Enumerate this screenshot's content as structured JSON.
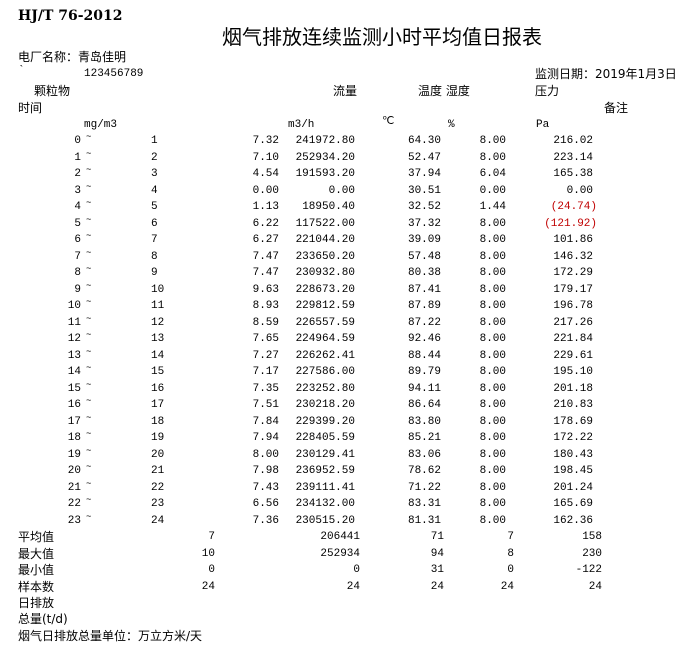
{
  "standard": "HJ/T 76-2012",
  "title": "烟气排放连续监测小时平均值日报表",
  "plant_label": "电厂名称：青岛佳明",
  "tick_mark": "`",
  "code": "123456789",
  "date_label": "监测日期：2019年1月3日",
  "headers": {
    "pm": "颗粒物",
    "flow": "流量",
    "temp_hum": "温度 湿度",
    "pressure": "压力",
    "time": "时间",
    "remark": "备注",
    "pm_unit": "mg/m3",
    "flow_unit": "m3/h",
    "temp_unit": "℃",
    "hum_unit": "%",
    "pressure_unit": "Pa"
  },
  "tilde": "~",
  "accent_negative": "#c00000",
  "rows": [
    {
      "start": "0",
      "end": "1",
      "pm": "7.32",
      "flow": "241972.80",
      "temp": "64.30",
      "hum": "8.00",
      "pressure": "216.02"
    },
    {
      "start": "1",
      "end": "2",
      "pm": "7.10",
      "flow": "252934.20",
      "temp": "52.47",
      "hum": "8.00",
      "pressure": "223.14"
    },
    {
      "start": "2",
      "end": "3",
      "pm": "4.54",
      "flow": "191593.20",
      "temp": "37.94",
      "hum": "6.04",
      "pressure": "165.38"
    },
    {
      "start": "3",
      "end": "4",
      "pm": "0.00",
      "flow": "0.00",
      "temp": "30.51",
      "hum": "0.00",
      "pressure": "0.00"
    },
    {
      "start": "4",
      "end": "5",
      "pm": "1.13",
      "flow": "18950.40",
      "temp": "32.52",
      "hum": "1.44",
      "pressure": "(24.74)",
      "negative": true
    },
    {
      "start": "5",
      "end": "6",
      "pm": "6.22",
      "flow": "117522.00",
      "temp": "37.32",
      "hum": "8.00",
      "pressure": "(121.92)",
      "negative": true
    },
    {
      "start": "6",
      "end": "7",
      "pm": "6.27",
      "flow": "221044.20",
      "temp": "39.09",
      "hum": "8.00",
      "pressure": "101.86"
    },
    {
      "start": "7",
      "end": "8",
      "pm": "7.47",
      "flow": "233650.20",
      "temp": "57.48",
      "hum": "8.00",
      "pressure": "146.32"
    },
    {
      "start": "8",
      "end": "9",
      "pm": "7.47",
      "flow": "230932.80",
      "temp": "80.38",
      "hum": "8.00",
      "pressure": "172.29"
    },
    {
      "start": "9",
      "end": "10",
      "pm": "9.63",
      "flow": "228673.20",
      "temp": "87.41",
      "hum": "8.00",
      "pressure": "179.17"
    },
    {
      "start": "10",
      "end": "11",
      "pm": "8.93",
      "flow": "229812.59",
      "temp": "87.89",
      "hum": "8.00",
      "pressure": "196.78"
    },
    {
      "start": "11",
      "end": "12",
      "pm": "8.59",
      "flow": "226557.59",
      "temp": "87.22",
      "hum": "8.00",
      "pressure": "217.26"
    },
    {
      "start": "12",
      "end": "13",
      "pm": "7.65",
      "flow": "224964.59",
      "temp": "92.46",
      "hum": "8.00",
      "pressure": "221.84"
    },
    {
      "start": "13",
      "end": "14",
      "pm": "7.27",
      "flow": "226262.41",
      "temp": "88.44",
      "hum": "8.00",
      "pressure": "229.61"
    },
    {
      "start": "14",
      "end": "15",
      "pm": "7.17",
      "flow": "227586.00",
      "temp": "89.79",
      "hum": "8.00",
      "pressure": "195.10"
    },
    {
      "start": "15",
      "end": "16",
      "pm": "7.35",
      "flow": "223252.80",
      "temp": "94.11",
      "hum": "8.00",
      "pressure": "201.18"
    },
    {
      "start": "16",
      "end": "17",
      "pm": "7.51",
      "flow": "230218.20",
      "temp": "86.64",
      "hum": "8.00",
      "pressure": "210.83"
    },
    {
      "start": "17",
      "end": "18",
      "pm": "7.84",
      "flow": "229399.20",
      "temp": "83.80",
      "hum": "8.00",
      "pressure": "178.69"
    },
    {
      "start": "18",
      "end": "19",
      "pm": "7.94",
      "flow": "228405.59",
      "temp": "85.21",
      "hum": "8.00",
      "pressure": "172.22"
    },
    {
      "start": "19",
      "end": "20",
      "pm": "8.00",
      "flow": "230129.41",
      "temp": "83.06",
      "hum": "8.00",
      "pressure": "180.43"
    },
    {
      "start": "20",
      "end": "21",
      "pm": "7.98",
      "flow": "236952.59",
      "temp": "78.62",
      "hum": "8.00",
      "pressure": "198.45"
    },
    {
      "start": "21",
      "end": "22",
      "pm": "7.43",
      "flow": "239111.41",
      "temp": "71.22",
      "hum": "8.00",
      "pressure": "201.24"
    },
    {
      "start": "22",
      "end": "23",
      "pm": "6.56",
      "flow": "234132.00",
      "temp": "83.31",
      "hum": "8.00",
      "pressure": "165.69"
    },
    {
      "start": "23",
      "end": "24",
      "pm": "7.36",
      "flow": "230515.20",
      "temp": "81.31",
      "hum": "8.00",
      "pressure": "162.36"
    }
  ],
  "summary": [
    {
      "label": "平均值",
      "pm": "7",
      "flow": "206441",
      "temp": "71",
      "hum": "7",
      "pressure": "158"
    },
    {
      "label": "最大值",
      "pm": "10",
      "flow": "252934",
      "temp": "94",
      "hum": "8",
      "pressure": "230"
    },
    {
      "label": "最小值",
      "pm": "0",
      "flow": "0",
      "temp": "31",
      "hum": "0",
      "pressure": "-122"
    },
    {
      "label": "样本数",
      "pm": "24",
      "flow": "24",
      "temp": "24",
      "hum": "24",
      "pressure": "24"
    }
  ],
  "footer": {
    "daily_emission": "日排放",
    "total": "总量(t/d)",
    "unit_note": "烟气日排放总量单位：万立方米/天"
  }
}
